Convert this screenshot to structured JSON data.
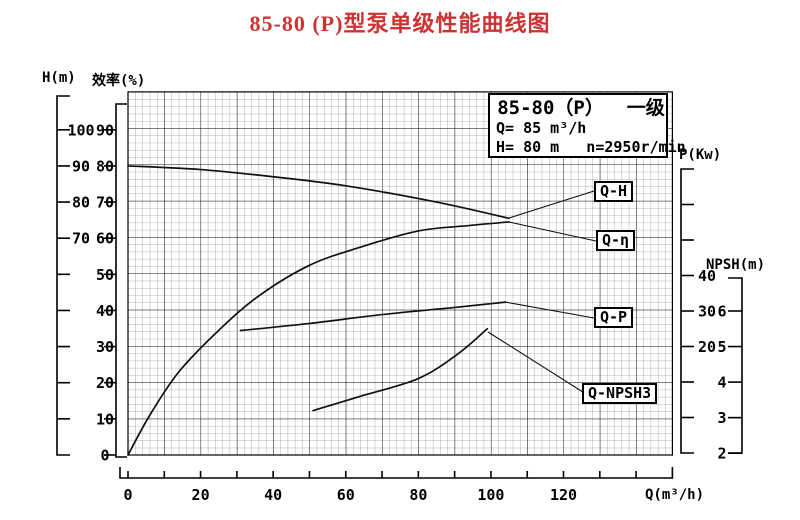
{
  "title": "85-80 (P)型泵单级性能曲线图",
  "colors": {
    "title": "#cc3333",
    "curve": "#101010",
    "grid_minor": "#6f6f6f",
    "grid_major": "#1a1a1a"
  },
  "info_box": {
    "line1": "85-80（P）  一级",
    "line2": "Q= 85 m³/h",
    "line3": "H= 80 m   n=2950r/min"
  },
  "axes": {
    "head": {
      "title": "H(m)",
      "ticks": [
        "100",
        "90",
        "80",
        "70"
      ]
    },
    "efficiency": {
      "title": "效率(%)",
      "ticks": [
        "90",
        "80",
        "70",
        "60",
        "50",
        "40",
        "30",
        "20",
        "10",
        "0"
      ]
    },
    "power": {
      "title": "P(Kw)",
      "ticks": [
        "40",
        "30",
        "20"
      ]
    },
    "npsh": {
      "title": "NPSH(m)",
      "ticks": [
        "6",
        "5",
        "4",
        "3",
        "2"
      ]
    },
    "flow": {
      "title": "Q(m³/h)",
      "ticks": [
        "0",
        "20",
        "40",
        "60",
        "80",
        "100",
        "120"
      ]
    }
  },
  "curve_labels": {
    "qh": "Q-H",
    "qeta": "Q-η",
    "qp": "Q-P",
    "qnpsh": "Q-NPSH3"
  },
  "chart_data": {
    "type": "line",
    "title": "85-80 (P)型泵单级性能曲线图",
    "xlabel": "Q(m³/h)",
    "x_range": [
      0,
      150
    ],
    "x_minor_tick_step": 10,
    "x_labeled_ticks": [
      0,
      20,
      40,
      60,
      80,
      100,
      120
    ],
    "grid": "fine graph paper, minor cell = 2 units, major line every 10 units",
    "legend_position": "boxed labels with leader lines at right of plot",
    "y_axes": [
      {
        "label": "H(m)",
        "labeled_ticks": [
          70,
          80,
          90,
          100
        ]
      },
      {
        "label": "效率(%)",
        "labeled_ticks": [
          0,
          10,
          20,
          30,
          40,
          50,
          60,
          70,
          80,
          90
        ]
      },
      {
        "label": "P(Kw)",
        "labeled_ticks": [
          20,
          30,
          40
        ]
      },
      {
        "label": "NPSH(m)",
        "labeled_ticks": [
          2,
          3,
          4,
          5,
          6
        ]
      }
    ],
    "rated_point": {
      "Q": 85,
      "H": 80,
      "n": "2950r/min"
    },
    "series": [
      {
        "name": "Q-H",
        "axis": "H(m)",
        "x": [
          0,
          20,
          40,
          60,
          85,
          105
        ],
        "y": [
          90,
          89,
          87,
          84.5,
          80,
          75.5
        ]
      },
      {
        "name": "Q-η",
        "axis": "效率(%)",
        "x": [
          0,
          6,
          14,
          25,
          36,
          50,
          64,
          80,
          94,
          105
        ],
        "y": [
          0,
          11,
          23,
          34.5,
          44,
          52.5,
          57.5,
          62,
          63.5,
          64.5
        ]
      },
      {
        "name": "Q-P",
        "axis": "P(Kw)",
        "x": [
          31,
          50,
          70,
          90,
          104
        ],
        "y": [
          24.5,
          26.5,
          29,
          31,
          32.5
        ]
      },
      {
        "name": "Q-NPSH3",
        "axis": "NPSH(m)",
        "x": [
          51,
          64,
          80,
          91,
          99
        ],
        "y": [
          3.2,
          3.6,
          4.1,
          4.8,
          5.5
        ]
      }
    ]
  }
}
